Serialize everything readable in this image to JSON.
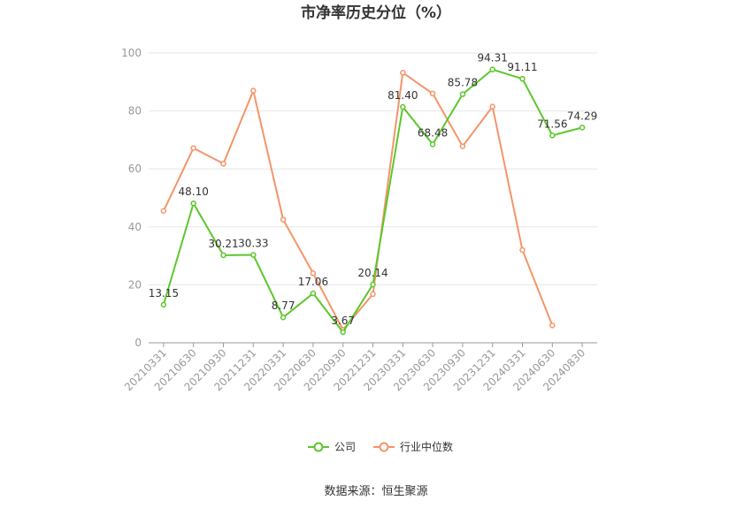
{
  "chart_data": {
    "type": "line",
    "title": "市净率历史分位（%）",
    "xlabel": "",
    "ylabel": "",
    "ylim": [
      0,
      100
    ],
    "yticks": [
      0,
      20,
      40,
      60,
      80,
      100
    ],
    "grid": true,
    "legend_position": "bottom-center",
    "categories": [
      "20210331",
      "20210630",
      "20210930",
      "20211231",
      "20220331",
      "20220630",
      "20220930",
      "20221231",
      "20230331",
      "20230630",
      "20230930",
      "20231231",
      "20240331",
      "20240630",
      "20240830"
    ],
    "series": [
      {
        "name": "公司",
        "color": "#5cc72c",
        "show_labels": true,
        "values": [
          13.15,
          48.1,
          30.21,
          30.33,
          8.77,
          17.06,
          3.67,
          20.14,
          81.4,
          68.48,
          85.78,
          94.31,
          91.11,
          71.56,
          74.29
        ],
        "labels": [
          "13.15",
          "48.10",
          "30.21",
          "30.33",
          "8.77",
          "17.06",
          "3.67",
          "20.14",
          "81.40",
          "68.48",
          "85.78",
          "94.31",
          "91.11",
          "71.56",
          "74.29"
        ]
      },
      {
        "name": "行业中位数",
        "color": "#f4956a",
        "show_labels": false,
        "values": [
          45.5,
          67.2,
          61.8,
          87.0,
          42.5,
          24.0,
          4.5,
          16.8,
          93.2,
          86.0,
          67.8,
          81.5,
          32.0,
          6.0,
          null
        ]
      }
    ],
    "source": "数据来源：恒生聚源"
  }
}
